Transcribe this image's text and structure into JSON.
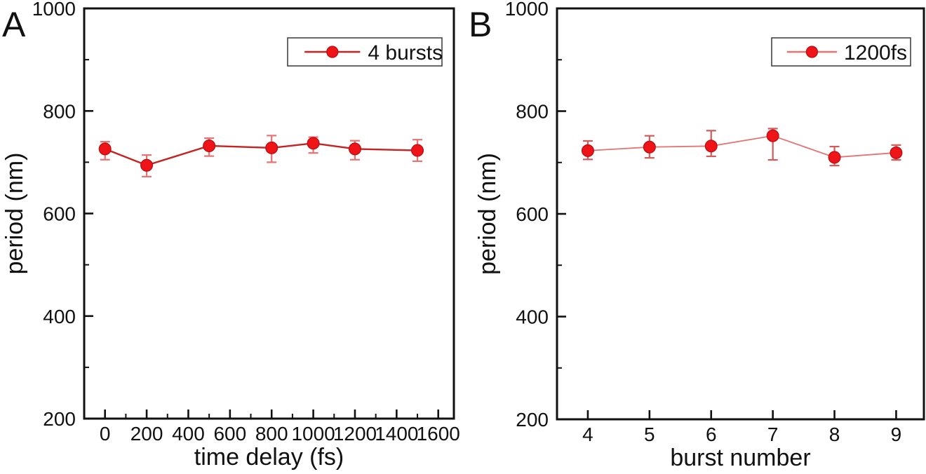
{
  "figure": {
    "background": "#ffffff",
    "text_color": "#111111"
  },
  "chart_data": [
    {
      "panel_label": "A",
      "type": "line",
      "title": "",
      "xlabel": "time delay (fs)",
      "ylabel": "period (nm)",
      "legend": "4 bursts",
      "legend_position": "top-right",
      "grid": false,
      "xlim": [
        -100,
        1675
      ],
      "ylim": [
        200,
        1000
      ],
      "xticks": [
        0,
        200,
        400,
        600,
        800,
        1000,
        1200,
        1400,
        1600
      ],
      "yticks": [
        200,
        400,
        600,
        800,
        1000
      ],
      "x_minor_step": 100,
      "y_minor_step": 100,
      "points": [
        {
          "x": 0,
          "y": 726,
          "ep": 14,
          "em": 21
        },
        {
          "x": 200,
          "y": 694,
          "ep": 20,
          "em": 22
        },
        {
          "x": 500,
          "y": 732,
          "ep": 15,
          "em": 20
        },
        {
          "x": 800,
          "y": 728,
          "ep": 24,
          "em": 28
        },
        {
          "x": 1000,
          "y": 737,
          "ep": 12,
          "em": 19
        },
        {
          "x": 1200,
          "y": 726,
          "ep": 16,
          "em": 21
        },
        {
          "x": 1500,
          "y": 723,
          "ep": 21,
          "em": 21
        }
      ],
      "colors": {
        "marker": "#ee1417",
        "marker_edge": "#b50d12",
        "line": "#c62222",
        "error": "#e57373",
        "axis": "#111111",
        "legend_border": "#444444"
      }
    },
    {
      "panel_label": "B",
      "type": "line",
      "title": "",
      "xlabel": "burst number",
      "ylabel": "period (nm)",
      "legend": "1200fs",
      "legend_position": "top-right",
      "grid": false,
      "xlim": [
        3.5,
        9.45
      ],
      "ylim": [
        200,
        1000
      ],
      "xticks": [
        4,
        5,
        6,
        7,
        8,
        9
      ],
      "yticks": [
        200,
        400,
        600,
        800,
        1000
      ],
      "x_minor_step": 0,
      "y_minor_step": 100,
      "points": [
        {
          "x": 4,
          "y": 723,
          "ep": 19,
          "em": 17
        },
        {
          "x": 5,
          "y": 730,
          "ep": 22,
          "em": 21
        },
        {
          "x": 6,
          "y": 732,
          "ep": 30,
          "em": 20
        },
        {
          "x": 7,
          "y": 752,
          "ep": 14,
          "em": 47
        },
        {
          "x": 8,
          "y": 710,
          "ep": 21,
          "em": 16
        },
        {
          "x": 9,
          "y": 719,
          "ep": 15,
          "em": 14
        }
      ],
      "colors": {
        "marker": "#ee1417",
        "marker_edge": "#b50d12",
        "line": "#e57373",
        "error": "#cf5b5b",
        "axis": "#111111",
        "legend_border": "#444444"
      }
    }
  ]
}
